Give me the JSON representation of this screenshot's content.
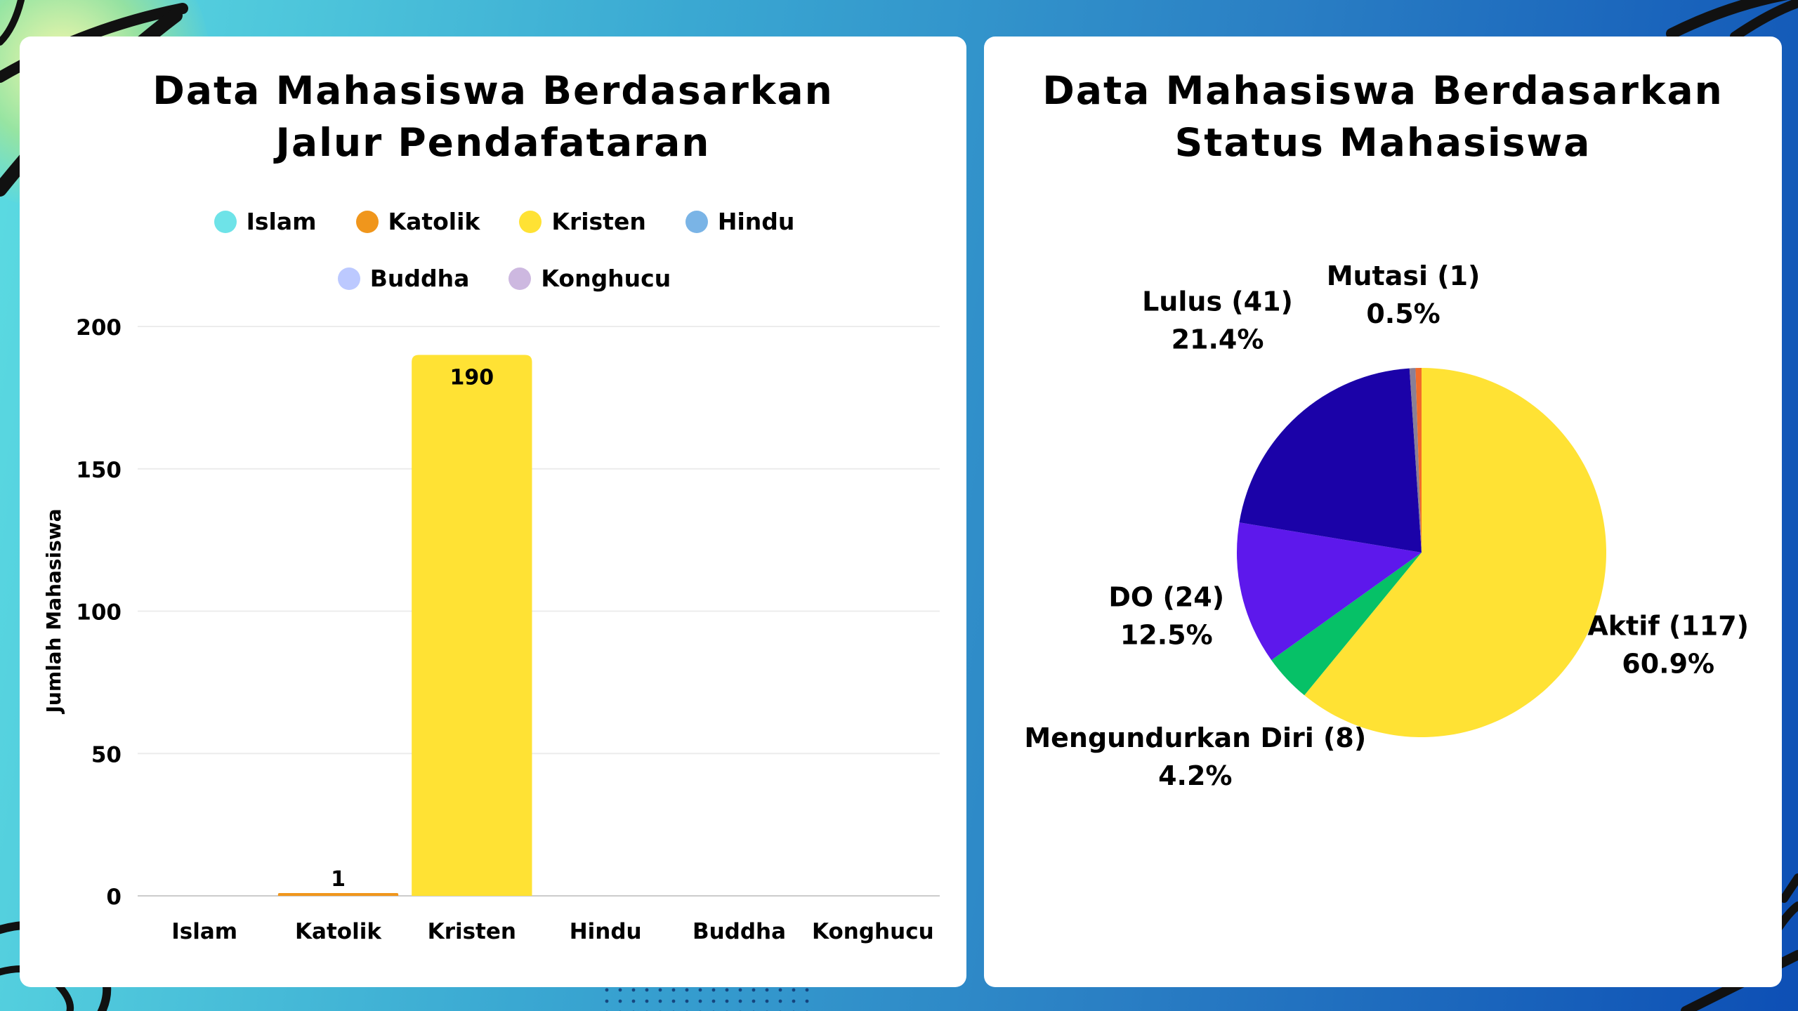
{
  "charts": {
    "left": {
      "title": "Data Mahasiswa Berdasarkan Jalur Pendafataran",
      "chart_data": {
        "type": "bar",
        "categories": [
          "Islam",
          "Katolik",
          "Kristen",
          "Hindu",
          "Buddha",
          "Konghucu"
        ],
        "values": [
          0,
          1,
          190,
          0,
          0,
          0
        ],
        "value_labels": [
          "",
          "1",
          "190",
          "",
          "",
          ""
        ],
        "colors": [
          "#6ee3e8",
          "#f0961c",
          "#ffe234",
          "#7ab4e6",
          "#bcc9ff",
          "#cdb8e0"
        ],
        "ylabel": "Jumlah Mahasiswa",
        "xlabel": "",
        "ylim": [
          0,
          200
        ],
        "yticks": [
          0,
          50,
          100,
          150,
          200
        ],
        "grid": true,
        "legend": "top"
      }
    },
    "right": {
      "title": "Data Mahasiswa Berdasarkan Status Mahasiswa",
      "chart_data": {
        "type": "pie",
        "slices": [
          {
            "label": "Aktif (117)",
            "percent": "60.9%",
            "value": 117,
            "color": "#ffe234"
          },
          {
            "label": "Mengundurkan Diri (8)",
            "percent": "4.2%",
            "value": 8,
            "color": "#06c167"
          },
          {
            "label": "DO (24)",
            "percent": "12.5%",
            "value": 24,
            "color": "#5d18ec"
          },
          {
            "label": "Lulus (41)",
            "percent": "21.4%",
            "value": 41,
            "color": "#1b02a8"
          },
          {
            "label": "",
            "percent": "",
            "value": 1,
            "color": "#8a7f95"
          },
          {
            "label": "Mutasi (1)",
            "percent": "0.5%",
            "value": 1,
            "color": "#f26b2a"
          }
        ]
      }
    }
  }
}
